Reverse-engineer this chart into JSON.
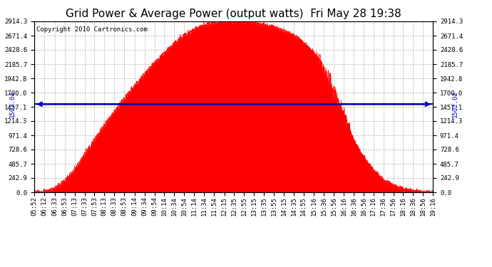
{
  "title": "Grid Power & Average Power (output watts)  Fri May 28 19:38",
  "copyright": "Copyright 2010 Cartronics.com",
  "avg_line_value": 1502.04,
  "avg_label": "1502.04",
  "yticks": [
    0.0,
    242.9,
    485.7,
    728.6,
    971.4,
    1214.3,
    1457.1,
    1700.0,
    1942.8,
    2185.7,
    2428.6,
    2671.4,
    2914.3
  ],
  "ymax": 2914.3,
  "ymin": 0.0,
  "fill_color": "#FF0000",
  "avg_line_color": "#0000BB",
  "background_color": "#FFFFFF",
  "grid_color": "#AAAAAA",
  "title_fontsize": 11,
  "copyright_fontsize": 6.5,
  "tick_fontsize": 6.5,
  "time_labels": [
    "05:52",
    "06:12",
    "06:33",
    "06:53",
    "07:13",
    "07:33",
    "07:53",
    "08:13",
    "08:33",
    "08:53",
    "09:14",
    "09:34",
    "09:54",
    "10:14",
    "10:34",
    "10:54",
    "11:14",
    "11:34",
    "11:54",
    "12:15",
    "12:35",
    "12:55",
    "13:15",
    "13:35",
    "13:55",
    "14:15",
    "14:35",
    "14:55",
    "15:16",
    "15:36",
    "15:56",
    "16:16",
    "16:36",
    "16:56",
    "17:16",
    "17:36",
    "17:56",
    "18:16",
    "18:36",
    "18:56",
    "19:16"
  ]
}
